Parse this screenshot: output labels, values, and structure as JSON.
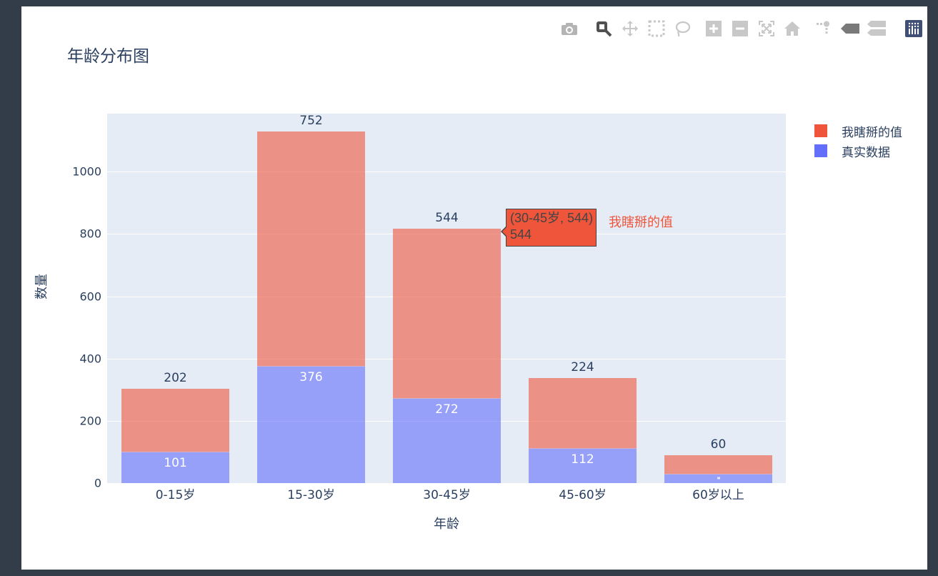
{
  "title": "年龄分布图",
  "modebar": {
    "buttons": [
      {
        "name": "camera-icon",
        "label": "Download plot as a png"
      },
      {
        "name": "zoom-icon",
        "label": "Zoom",
        "active": true
      },
      {
        "name": "pan-icon",
        "label": "Pan"
      },
      {
        "name": "box-select-icon",
        "label": "Box Select"
      },
      {
        "name": "lasso-select-icon",
        "label": "Lasso Select"
      },
      {
        "name": "zoom-in-icon",
        "label": "Zoom in"
      },
      {
        "name": "zoom-out-icon",
        "label": "Zoom out"
      },
      {
        "name": "autoscale-icon",
        "label": "Autoscale"
      },
      {
        "name": "reset-axes-icon",
        "label": "Reset axes"
      },
      {
        "name": "spike-lines-icon",
        "label": "Toggle Spike Lines"
      },
      {
        "name": "hover-closest-icon",
        "label": "Show closest data on hover"
      },
      {
        "name": "hover-compare-icon",
        "label": "Compare data on hover"
      },
      {
        "name": "plotly-logo-icon",
        "label": "Produced with Plotly"
      }
    ]
  },
  "axes": {
    "x_title": "年龄",
    "y_title": "数量",
    "y_ticks": [
      "0",
      "200",
      "400",
      "600",
      "800",
      "1000"
    ]
  },
  "legend": [
    {
      "label": "我瞎掰的值",
      "color": "#ef553b"
    },
    {
      "label": "真实数据",
      "color": "#636efa"
    }
  ],
  "bars": [
    {
      "category": "0-15岁",
      "real": "101",
      "guess": "202"
    },
    {
      "category": "15-30岁",
      "real": "376",
      "guess": "752"
    },
    {
      "category": "30-45岁",
      "real": "272",
      "guess": "544"
    },
    {
      "category": "45-60岁",
      "real": "112",
      "guess": "224"
    },
    {
      "category": "60岁以上",
      "real": "30",
      "guess": "60"
    }
  ],
  "hover": {
    "line1": "(30-45岁, 544)",
    "line2": "544",
    "trace_name": "我瞎掰的值"
  },
  "colors": {
    "guess": "#ef553b",
    "real": "#636efa",
    "plot_bg": "#e5ecf6",
    "text": "#2a3f5f",
    "page_bg": "#333d4a"
  },
  "chart_data": {
    "type": "bar",
    "barmode": "stack",
    "title": "年龄分布图",
    "xlabel": "年龄",
    "ylabel": "数量",
    "categories": [
      "0-15岁",
      "15-30岁",
      "30-45岁",
      "45-60岁",
      "60岁以上"
    ],
    "series": [
      {
        "name": "真实数据",
        "color": "#636efa",
        "values": [
          101,
          376,
          272,
          112,
          30
        ]
      },
      {
        "name": "我瞎掰的值",
        "color": "#ef553b",
        "values": [
          202,
          752,
          544,
          224,
          60
        ]
      }
    ],
    "ylim": [
      0,
      1184
    ],
    "y_ticks": [
      0,
      200,
      400,
      600,
      800,
      1000
    ],
    "grid": true,
    "legend_position": "right-top",
    "opacity": 0.6
  }
}
